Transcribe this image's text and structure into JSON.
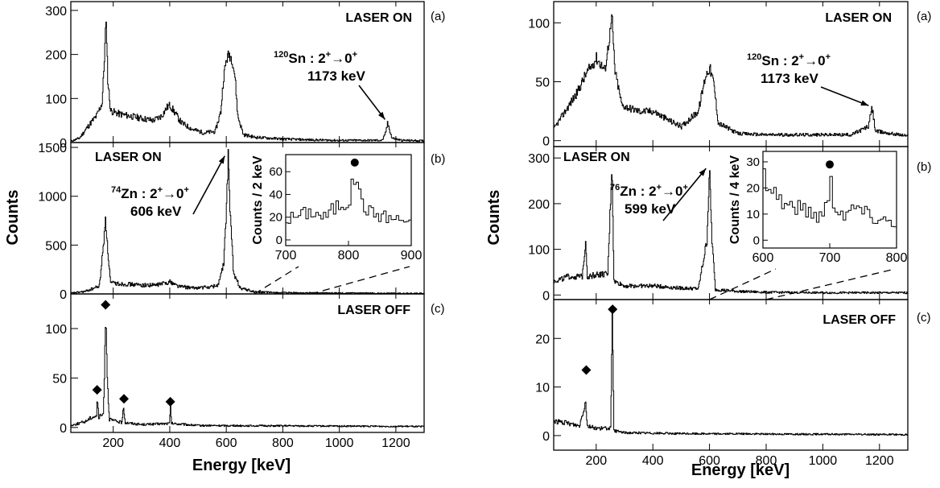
{
  "chart_data": [
    {
      "type": "line",
      "ylabel": "Counts",
      "xlabel": "Energy [keV]",
      "xlim": [
        50,
        1300
      ],
      "xticks": [
        200,
        400,
        600,
        800,
        1000,
        1200
      ],
      "panels": [
        {
          "id": "a",
          "tag": "(a)",
          "label": "LASER ON",
          "ylim": [
            0,
            320
          ],
          "yticks": [
            0,
            100,
            200,
            300
          ],
          "baseline": [
            [
              50,
              3
            ],
            [
              80,
              10
            ],
            [
              100,
              28
            ],
            [
              120,
              45
            ],
            [
              140,
              60
            ],
            [
              160,
              90
            ],
            [
              165,
              150
            ],
            [
              170,
              220
            ],
            [
              173,
              270
            ],
            [
              176,
              240
            ],
            [
              180,
              140
            ],
            [
              190,
              72
            ],
            [
              220,
              65
            ],
            [
              260,
              60
            ],
            [
              300,
              55
            ],
            [
              340,
              50
            ],
            [
              370,
              60
            ],
            [
              390,
              80
            ],
            [
              400,
              85
            ],
            [
              410,
              75
            ],
            [
              440,
              45
            ],
            [
              480,
              30
            ],
            [
              520,
              22
            ],
            [
              560,
              25
            ],
            [
              580,
              70
            ],
            [
              590,
              150
            ],
            [
              600,
              190
            ],
            [
              610,
              200
            ],
            [
              620,
              190
            ],
            [
              630,
              150
            ],
            [
              640,
              60
            ],
            [
              660,
              18
            ],
            [
              700,
              12
            ],
            [
              800,
              8
            ],
            [
              900,
              6
            ],
            [
              1000,
              5
            ],
            [
              1100,
              5
            ],
            [
              1150,
              5
            ],
            [
              1160,
              15
            ],
            [
              1170,
              42
            ],
            [
              1175,
              35
            ],
            [
              1185,
              10
            ],
            [
              1220,
              5
            ],
            [
              1300,
              4
            ]
          ],
          "annotation": {
            "isotope": "120",
            "element": "Sn",
            "transition": " : 2",
            "sup1": "+",
            "arrow": "→0",
            "sup2": "+",
            "energy": "1173 keV",
            "peak": [
              1173,
              45
            ]
          }
        },
        {
          "id": "b",
          "tag": "(b)",
          "label": "LASER ON",
          "ylim": [
            0,
            1550
          ],
          "yticks": [
            0,
            500,
            1000,
            1500
          ],
          "baseline": [
            [
              50,
              8
            ],
            [
              100,
              25
            ],
            [
              150,
              80
            ],
            [
              165,
              500
            ],
            [
              172,
              800
            ],
            [
              178,
              500
            ],
            [
              190,
              110
            ],
            [
              250,
              100
            ],
            [
              300,
              90
            ],
            [
              350,
              90
            ],
            [
              400,
              125
            ],
            [
              430,
              80
            ],
            [
              480,
              60
            ],
            [
              540,
              70
            ],
            [
              570,
              90
            ],
            [
              590,
              300
            ],
            [
              600,
              900
            ],
            [
              606,
              1400
            ],
            [
              612,
              900
            ],
            [
              625,
              200
            ],
            [
              650,
              60
            ],
            [
              700,
              20
            ],
            [
              800,
              12
            ],
            [
              900,
              10
            ],
            [
              1000,
              8
            ],
            [
              1200,
              7
            ],
            [
              1300,
              6
            ]
          ],
          "annotation": {
            "isotope": "74",
            "element": "Zn",
            "transition": " : 2",
            "sup1": "+",
            "arrow": "→0",
            "sup2": "+",
            "energy": "606 keV",
            "peak": [
              606,
              1380
            ]
          },
          "inset": {
            "ylabel": "Counts / 2 keV",
            "xlim": [
              700,
              900
            ],
            "ylim": [
              -5,
              75
            ],
            "xticks": [
              700,
              800,
              900
            ],
            "yticks": [
              0,
              20,
              40,
              60
            ],
            "baseline": [
              [
                700,
                18
              ],
              [
                720,
                22
              ],
              [
                740,
                25
              ],
              [
                760,
                20
              ],
              [
                780,
                30
              ],
              [
                800,
                35
              ],
              [
                806,
                50
              ],
              [
                810,
                63
              ],
              [
                815,
                40
              ],
              [
                830,
                25
              ],
              [
                860,
                20
              ],
              [
                880,
                18
              ],
              [
                900,
                16
              ]
            ],
            "marker": [
              810,
              68
            ],
            "zoom_range": [
              700,
              900
            ]
          }
        },
        {
          "id": "c",
          "tag": "(c)",
          "label": "LASER OFF",
          "ylim": [
            -5,
            135
          ],
          "yticks": [
            0,
            50,
            100
          ],
          "baseline": [
            [
              50,
              2
            ],
            [
              100,
              6
            ],
            [
              120,
              10
            ],
            [
              140,
              12
            ],
            [
              143,
              30
            ],
            [
              148,
              10
            ],
            [
              165,
              14
            ],
            [
              170,
              80
            ],
            [
              173,
              120
            ],
            [
              177,
              60
            ],
            [
              185,
              8
            ],
            [
              230,
              5
            ],
            [
              236,
              20
            ],
            [
              242,
              5
            ],
            [
              300,
              3
            ],
            [
              398,
              4
            ],
            [
              402,
              20
            ],
            [
              406,
              4
            ],
            [
              500,
              2
            ],
            [
              1300,
              1
            ]
          ],
          "markers": [
            [
              143,
              38
            ],
            [
              173,
              124
            ],
            [
              238,
              29
            ],
            [
              402,
              26
            ]
          ]
        }
      ]
    },
    {
      "type": "line",
      "ylabel": "Counts",
      "xlabel": "Energy [keV]",
      "xlim": [
        50,
        1300
      ],
      "xticks": [
        200,
        400,
        600,
        800,
        1000,
        1200
      ],
      "panels": [
        {
          "id": "a",
          "tag": "(a)",
          "label": "LASER ON",
          "ylim": [
            -5,
            118
          ],
          "yticks": [
            0,
            50,
            100
          ],
          "baseline": [
            [
              50,
              10
            ],
            [
              90,
              25
            ],
            [
              130,
              40
            ],
            [
              160,
              55
            ],
            [
              200,
              70
            ],
            [
              230,
              60
            ],
            [
              250,
              95
            ],
            [
              255,
              105
            ],
            [
              265,
              60
            ],
            [
              290,
              30
            ],
            [
              350,
              25
            ],
            [
              400,
              25
            ],
            [
              450,
              18
            ],
            [
              500,
              12
            ],
            [
              560,
              25
            ],
            [
              585,
              55
            ],
            [
              600,
              62
            ],
            [
              615,
              48
            ],
            [
              630,
              15
            ],
            [
              700,
              6
            ],
            [
              800,
              5
            ],
            [
              900,
              5
            ],
            [
              1000,
              5
            ],
            [
              1100,
              5
            ],
            [
              1160,
              12
            ],
            [
              1173,
              28
            ],
            [
              1185,
              8
            ],
            [
              1300,
              4
            ]
          ],
          "annotation": {
            "isotope": "120",
            "element": "Sn",
            "transition": " : 2",
            "sup1": "+",
            "arrow": "→0",
            "sup2": "+",
            "energy": "1173 keV",
            "peak": [
              1173,
              27
            ]
          }
        },
        {
          "id": "b",
          "tag": "(b)",
          "label": "LASER ON",
          "ylim": [
            -10,
            325
          ],
          "yticks": [
            0,
            100,
            200,
            300
          ],
          "baseline": [
            [
              50,
              30
            ],
            [
              100,
              40
            ],
            [
              150,
              40
            ],
            [
              162,
              120
            ],
            [
              168,
              40
            ],
            [
              200,
              45
            ],
            [
              240,
              45
            ],
            [
              255,
              290
            ],
            [
              262,
              30
            ],
            [
              300,
              20
            ],
            [
              400,
              20
            ],
            [
              500,
              15
            ],
            [
              560,
              14
            ],
            [
              590,
              120
            ],
            [
              599,
              275
            ],
            [
              608,
              120
            ],
            [
              620,
              12
            ],
            [
              700,
              8
            ],
            [
              800,
              6
            ],
            [
              1000,
              5
            ],
            [
              1300,
              5
            ]
          ],
          "annotation": {
            "isotope": "76",
            "element": "Zn",
            "transition": " : 2",
            "sup1": "+",
            "arrow": "→0",
            "sup2": "+",
            "energy": "599 keV",
            "peak": [
              599,
              270
            ]
          },
          "inset": {
            "ylabel": "Counts / 4 keV",
            "xlim": [
              600,
              800
            ],
            "ylim": [
              -3,
              34
            ],
            "xticks": [
              600,
              700,
              800
            ],
            "yticks": [
              0,
              10,
              20,
              30
            ],
            "baseline": [
              [
                600,
                25
              ],
              [
                612,
                20
              ],
              [
                630,
                14
              ],
              [
                660,
                12
              ],
              [
                680,
                9
              ],
              [
                695,
                14
              ],
              [
                700,
                22
              ],
              [
                705,
                14
              ],
              [
                720,
                10
              ],
              [
                740,
                13
              ],
              [
                760,
                9
              ],
              [
                780,
                8
              ],
              [
                800,
                7
              ]
            ],
            "marker": [
              700,
              29
            ],
            "zoom_range": [
              600,
              800
            ]
          }
        },
        {
          "id": "c",
          "tag": "(c)",
          "label": "LASER OFF",
          "ylim": [
            -3,
            28
          ],
          "yticks": [
            0,
            10,
            20
          ],
          "baseline": [
            [
              50,
              3
            ],
            [
              100,
              2.5
            ],
            [
              140,
              2
            ],
            [
              162,
              7
            ],
            [
              168,
              2
            ],
            [
              200,
              1.5
            ],
            [
              250,
              1.5
            ],
            [
              256,
              24
            ],
            [
              262,
              1
            ],
            [
              300,
              0.6
            ],
            [
              500,
              0.4
            ],
            [
              1300,
              0.2
            ]
          ],
          "markers": [
            [
              165,
              13.5
            ],
            [
              258,
              26
            ]
          ]
        }
      ]
    }
  ]
}
